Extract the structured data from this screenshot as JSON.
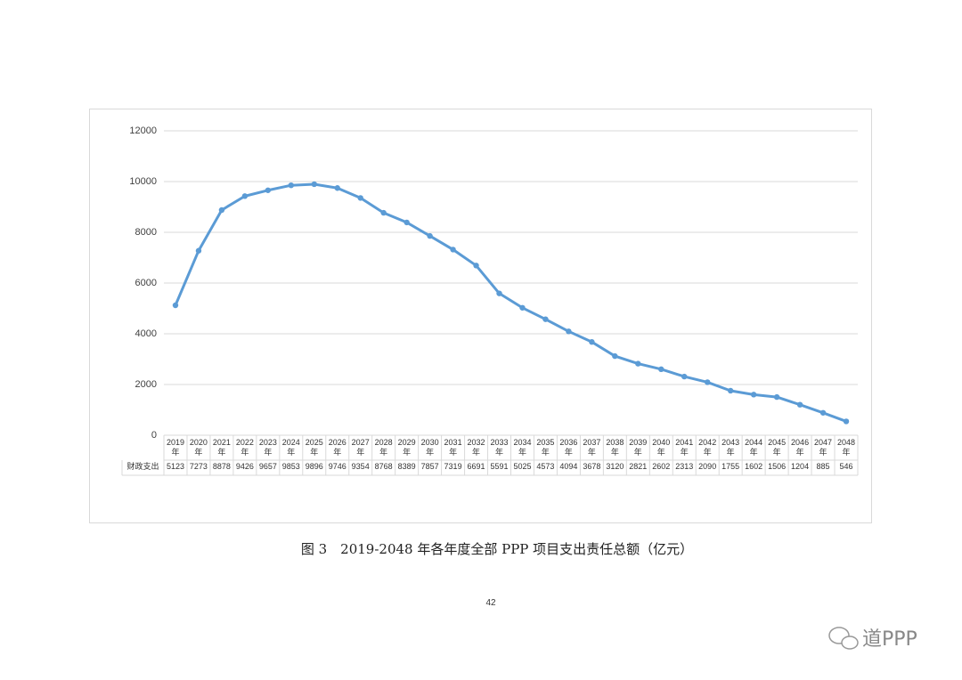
{
  "chart_data": {
    "type": "line",
    "categories": [
      "2019年",
      "2020年",
      "2021年",
      "2022年",
      "2023年",
      "2024年",
      "2025年",
      "2026年",
      "2027年",
      "2028年",
      "2029年",
      "2030年",
      "2031年",
      "2032年",
      "2033年",
      "2034年",
      "2035年",
      "2036年",
      "2037年",
      "2038年",
      "2039年",
      "2040年",
      "2041年",
      "2042年",
      "2043年",
      "2044年",
      "2045年",
      "2046年",
      "2047年",
      "2048年"
    ],
    "series": [
      {
        "name": "财政支出",
        "color": "#5b9bd5",
        "values": [
          5123,
          7273,
          8878,
          9426,
          9657,
          9853,
          9896,
          9746,
          9354,
          8768,
          8389,
          7857,
          7319,
          6691,
          5591,
          5025,
          4573,
          4094,
          3678,
          3120,
          2821,
          2602,
          2313,
          2090,
          1755,
          1602,
          1506,
          1204,
          885,
          546
        ]
      }
    ],
    "ylim": [
      0,
      12000
    ],
    "yticks": [
      0,
      2000,
      4000,
      6000,
      8000,
      10000,
      12000
    ],
    "grid": true
  },
  "caption": "图 3　2019-2048 年各年度全部 PPP 项目支出责任总额（亿元）",
  "page_number": "42",
  "watermark": "道PPP"
}
